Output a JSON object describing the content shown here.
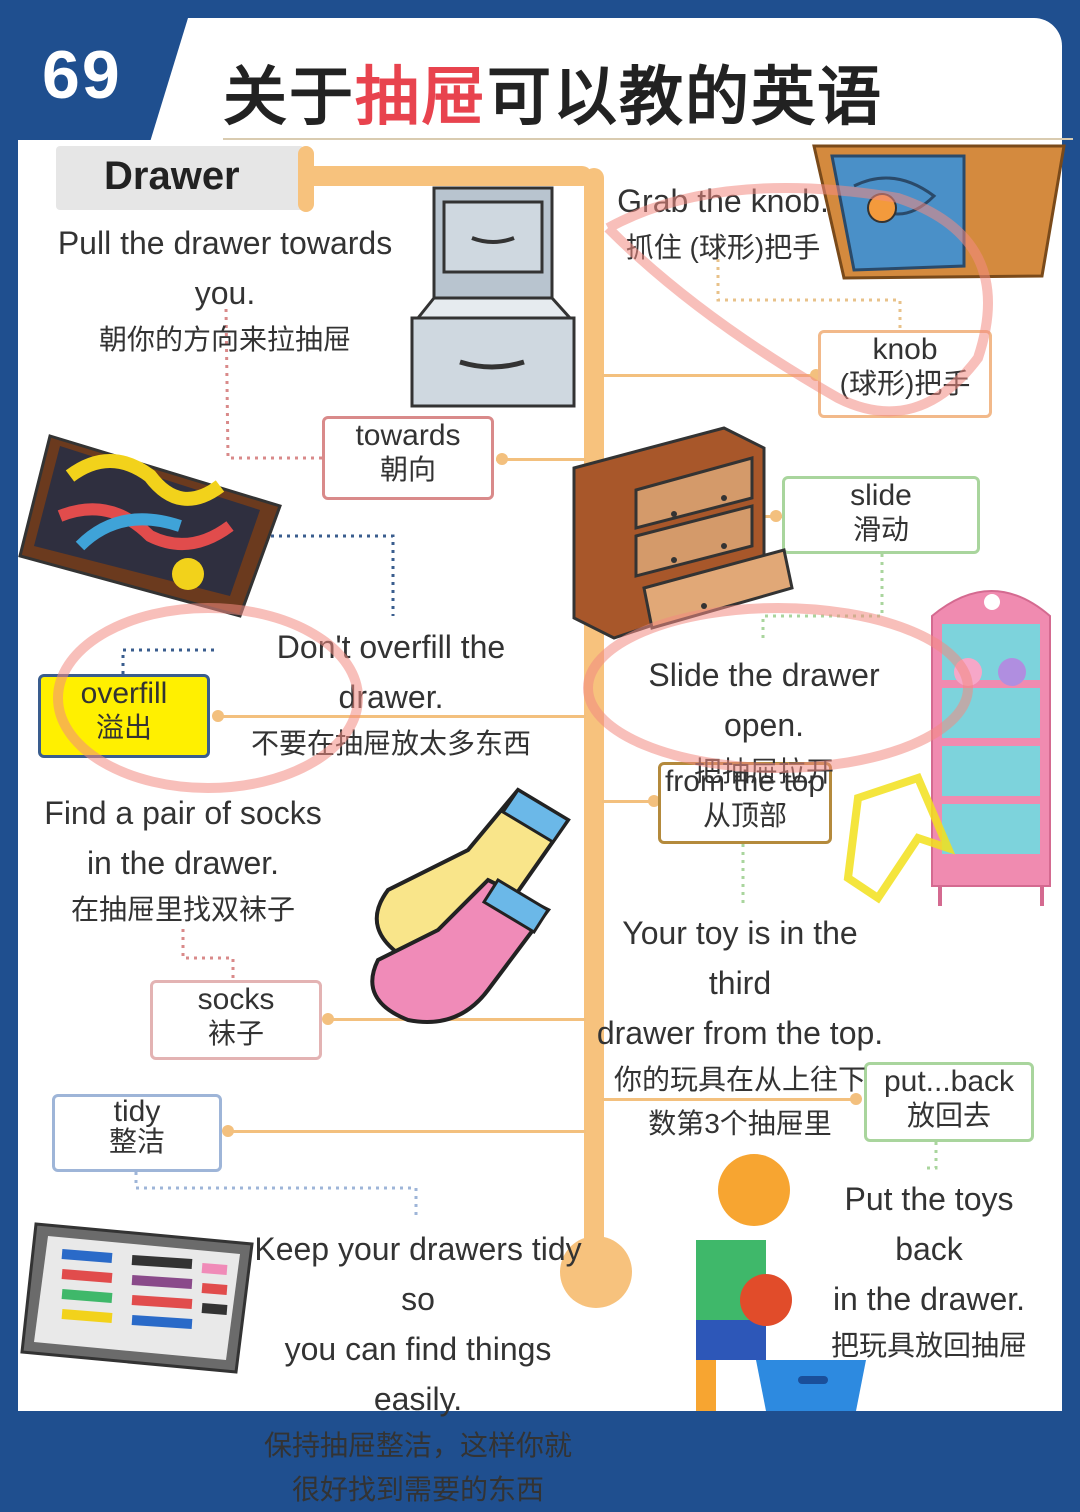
{
  "header": {
    "number": "69",
    "title_black_1": "关于",
    "title_red": "抽屉",
    "title_black_2": "可以教的英语"
  },
  "topic": "Drawer",
  "vocab": [
    {
      "id": "towards",
      "en": "towards",
      "zh": "朝向"
    },
    {
      "id": "knob",
      "en": "knob",
      "zh": "(球形)把手"
    },
    {
      "id": "slide",
      "en": "slide",
      "zh": "滑动"
    },
    {
      "id": "overfill",
      "en": "overfill",
      "zh": "溢出"
    },
    {
      "id": "from_top",
      "en": "from the top",
      "zh": "从顶部"
    },
    {
      "id": "socks",
      "en": "socks",
      "zh": "袜子"
    },
    {
      "id": "put_back",
      "en": "put...back",
      "zh": "放回去"
    },
    {
      "id": "tidy",
      "en": "tidy",
      "zh": "整洁"
    }
  ],
  "sentences": {
    "pull": {
      "en": "Pull the drawer towards you.",
      "zh": "朝你的方向来拉抽屉"
    },
    "grab": {
      "en": "Grab the knob.",
      "zh": "抓住 (球形)把手"
    },
    "overfill": {
      "en": "Don't overfill the drawer.",
      "zh": "不要在抽屉放太多东西"
    },
    "slide": {
      "en": "Slide the drawer open.",
      "zh": "把抽屉拉开"
    },
    "socks": {
      "en1": "Find a pair of socks",
      "en2": "in the drawer.",
      "zh": "在抽屉里找双袜子"
    },
    "toy": {
      "en1": "Your toy is in the third",
      "en2": "drawer from the top.",
      "zh1": "你的玩具在从上往下",
      "zh2": "数第3个抽屉里"
    },
    "putback": {
      "en1": "Put the toys back",
      "en2": "in the drawer.",
      "zh": "把玩具放回抽屉"
    },
    "tidy": {
      "en1": "Keep your drawers tidy so",
      "en2": "you can find things easily.",
      "zh1": "保持抽屉整洁，这样你就",
      "zh2": "很好找到需要的东西"
    }
  },
  "colors": {
    "brand_blue": "#1f4f8f",
    "title_red": "#e8434e",
    "trunk": "#f7c27d",
    "highlight_yellow": "#fff000"
  },
  "icons": [
    "file-cabinet-icon",
    "jewelry-box-icon",
    "messy-drawer-icon",
    "dresser-icon",
    "pink-cabinet-icon",
    "socks-icon",
    "child-with-toys-icon",
    "organized-drawer-icon"
  ]
}
